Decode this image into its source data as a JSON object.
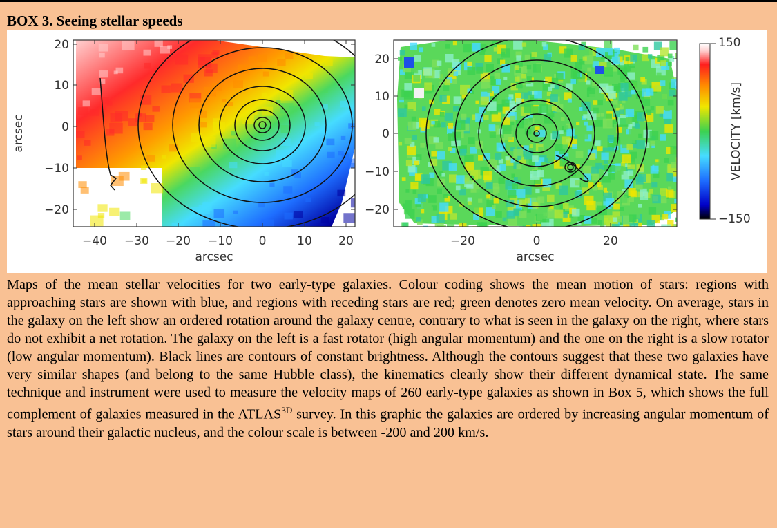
{
  "box_title": "BOX 3. Seeing stellar speeds",
  "figure": {
    "left_panel": {
      "xlabel": "arcsec",
      "ylabel": "arcsec",
      "xticks": [
        "−40",
        "−30",
        "−20",
        "−10",
        "0",
        "10",
        "20"
      ],
      "yticks": [
        "20",
        "10",
        "0",
        "−10",
        "−20"
      ]
    },
    "right_panel": {
      "xlabel": "arcsec",
      "xticks": [
        "−20",
        "0",
        "20"
      ],
      "yticks": [
        "20",
        "10",
        "0",
        "−10",
        "−20"
      ]
    },
    "colorbar": {
      "label": "VELOCITY [km/s]",
      "max_label": "150",
      "min_label": "−150",
      "colors": [
        "#000000",
        "#0000c8",
        "#1e6eff",
        "#46dcff",
        "#3cd250",
        "#f0e600",
        "#ff8c00",
        "#ff1e1e",
        "#ffd2d2",
        "#ffffff"
      ]
    }
  },
  "caption": {
    "text_before_sup": "Maps of the mean stellar velocities for two early-type galaxies. Colour coding shows the mean motion of stars: regions with approaching stars are shown with blue, and regions with receding stars are red; green denotes zero mean velocity. On average, stars in the galaxy on the left show an ordered rotation around the galaxy centre, contrary to what is seen in the galaxy on the right, where stars do not exhibit a net rotation. The galaxy on the left is a fast rotator (high angular momentum) and the one on the right is a slow rotator (low angular momentum). Black lines are contours of constant brightness. Although the contours suggest that these two galaxies have very similar shapes (and belong to the same Hubble class), the kinematics clearly show their different dynamical state. The same technique and instrument were used to measure the velocity maps of 260 early-type galaxies as shown in Box 5, which shows the full complement of galaxies measured in the ATLAS",
    "sup": "3D",
    "text_after_sup": " survey. In this graphic the galaxies are ordered by increasing angular momentum of stars around their galactic nucleus, and the colour scale is between -200 and 200 km/s."
  }
}
